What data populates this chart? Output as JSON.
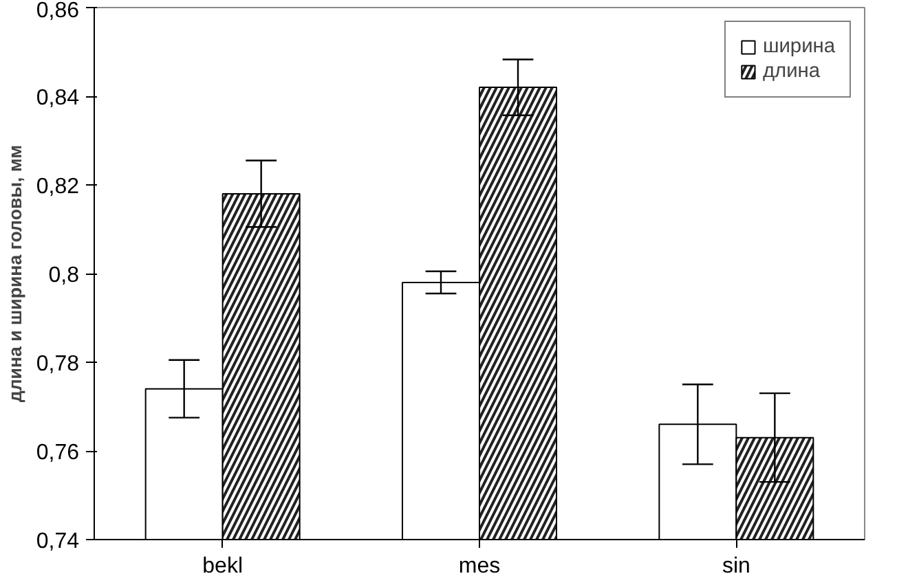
{
  "chart_data": {
    "type": "bar",
    "ylabel": "длина и ширина головы, мм",
    "categories": [
      "bekl",
      "mes",
      "sin"
    ],
    "series": [
      {
        "name": "ширина",
        "color": "#ffffff",
        "values": [
          0.774,
          0.798,
          0.766
        ],
        "errors": [
          0.0065,
          0.0025,
          0.009
        ]
      },
      {
        "name": "длина",
        "color": "#222222",
        "values": [
          0.818,
          0.842,
          0.763
        ],
        "errors": [
          0.0075,
          0.0063,
          0.01
        ]
      }
    ],
    "ylim": [
      0.74,
      0.86
    ],
    "yticks": [
      {
        "value": 0.74,
        "label": "0,74"
      },
      {
        "value": 0.76,
        "label": "0,76"
      },
      {
        "value": 0.78,
        "label": "0,78"
      },
      {
        "value": 0.8,
        "label": "0,8"
      },
      {
        "value": 0.82,
        "label": "0,82"
      },
      {
        "value": 0.84,
        "label": "0,84"
      },
      {
        "value": 0.86,
        "label": "0,86"
      }
    ],
    "grid": false,
    "legend": "top right"
  }
}
